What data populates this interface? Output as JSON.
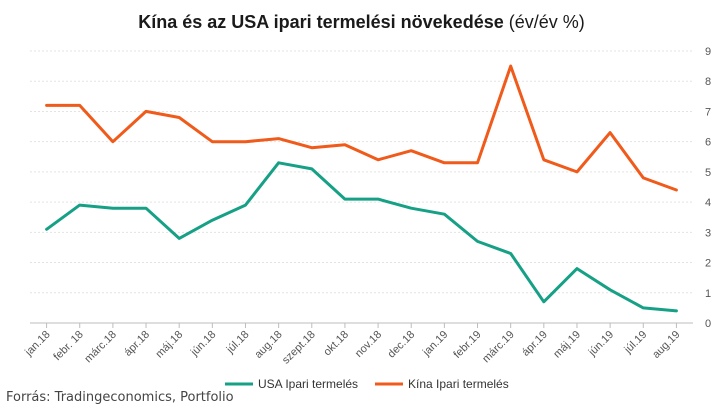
{
  "title": {
    "main": "Kína és az USA ipari termelési növekedése",
    "unit": "(év/év %)"
  },
  "source": "Forrás: Tradingeconomics, Portfolio",
  "colors": {
    "usa": "#16A085",
    "china": "#F05A1A",
    "grid": "#e3e3e3",
    "axis": "#bdbdbd"
  },
  "chart_data": {
    "type": "line",
    "title": "Kína és az USA ipari termelési növekedése (év/év %)",
    "categories": [
      "jan.18",
      "febr. 18",
      "márc.18",
      "ápr.18",
      "máj.18",
      "jún.18",
      "júl.18",
      "aug.18",
      "szept.18",
      "okt.18",
      "nov.18",
      "dec.18",
      "jan.19",
      "febr.19",
      "márc.19",
      "ápr.19",
      "máj.19",
      "jún.19",
      "júl.19",
      "aug.19"
    ],
    "series": [
      {
        "name": "USA Ipari termelés",
        "color": "#16A085",
        "values": [
          3.1,
          3.9,
          3.8,
          3.8,
          2.8,
          3.4,
          3.9,
          5.3,
          5.1,
          4.1,
          4.1,
          3.8,
          3.6,
          2.7,
          2.3,
          0.7,
          1.8,
          1.1,
          0.5,
          0.4
        ]
      },
      {
        "name": "Kína Ipari termelés",
        "color": "#F05A1A",
        "values": [
          7.2,
          7.2,
          6.0,
          7.0,
          6.8,
          6.0,
          6.0,
          6.1,
          5.8,
          5.9,
          5.4,
          5.7,
          5.3,
          5.3,
          8.5,
          5.4,
          5.0,
          6.3,
          4.8,
          4.4
        ]
      }
    ],
    "ylim": [
      0,
      9
    ],
    "yticks": [
      0,
      1,
      2,
      3,
      4,
      5,
      6,
      7,
      8,
      9
    ],
    "y_axis_side": "right",
    "grid": true,
    "legend": "bottom-center",
    "xlabel": "",
    "ylabel": ""
  }
}
